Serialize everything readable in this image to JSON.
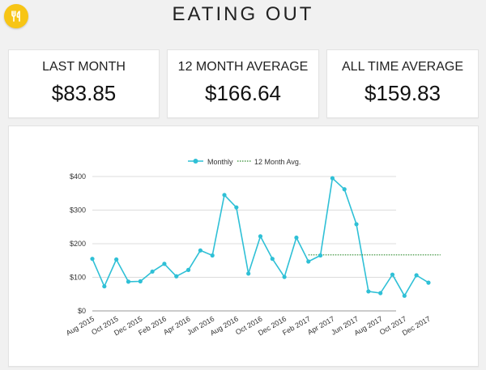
{
  "header": {
    "title": "EATING OUT",
    "icon": "fork-knife-icon",
    "accent": "#f7c515"
  },
  "stats": [
    {
      "label": "LAST MONTH",
      "value": "$83.85"
    },
    {
      "label": "12 MONTH AVERAGE",
      "value": "$166.64"
    },
    {
      "label": "ALL TIME AVERAGE",
      "value": "$159.83"
    }
  ],
  "chart_data": {
    "type": "line",
    "legend_placement": "top",
    "grid": true,
    "ylim": [
      0,
      400
    ],
    "yticks": [
      0,
      100,
      200,
      300,
      400
    ],
    "ytick_labels": [
      "$0",
      "$100",
      "$200",
      "$300",
      "$400"
    ],
    "x": [
      "Aug 2015",
      "Sep 2015",
      "Oct 2015",
      "Nov 2015",
      "Dec 2015",
      "Jan 2016",
      "Feb 2016",
      "Mar 2016",
      "Apr 2016",
      "May 2016",
      "Jun 2016",
      "Jul 2016",
      "Aug 2016",
      "Sep 2016",
      "Oct 2016",
      "Nov 2016",
      "Dec 2016",
      "Jan 2017",
      "Feb 2017",
      "Mar 2017",
      "Apr 2017",
      "May 2017",
      "Jun 2017",
      "Jul 2017",
      "Aug 2017",
      "Sep 2017",
      "Oct 2017",
      "Nov 2017",
      "Dec 2017",
      "Jan 2018"
    ],
    "xtick_labels": [
      "Aug 2015",
      "Oct 2015",
      "Dec 2015",
      "Feb 2016",
      "Apr 2016",
      "Jun 2016",
      "Aug 2016",
      "Oct 2016",
      "Dec 2016",
      "Feb 2017",
      "Apr 2017",
      "Jun 2017",
      "Aug 2017",
      "Oct 2017",
      "Dec 2017"
    ],
    "series": [
      {
        "name": "Monthly",
        "color": "#2fc0d6",
        "values": [
          155,
          73,
          153,
          87,
          88,
          117,
          140,
          103,
          122,
          180,
          165,
          345,
          308,
          111,
          222,
          155,
          101,
          218,
          147,
          165,
          395,
          362,
          258,
          58,
          53,
          108,
          45,
          106,
          84,
          null
        ]
      },
      {
        "name": "12 Month Avg.",
        "color": "#2e8b2e",
        "style": "dotted",
        "values": [
          null,
          null,
          null,
          null,
          null,
          null,
          null,
          null,
          null,
          null,
          null,
          null,
          null,
          null,
          null,
          null,
          null,
          null,
          166.64,
          166.64,
          166.64,
          166.64,
          166.64,
          166.64,
          166.64,
          166.64,
          166.64,
          166.64,
          166.64,
          166.64
        ]
      }
    ]
  }
}
